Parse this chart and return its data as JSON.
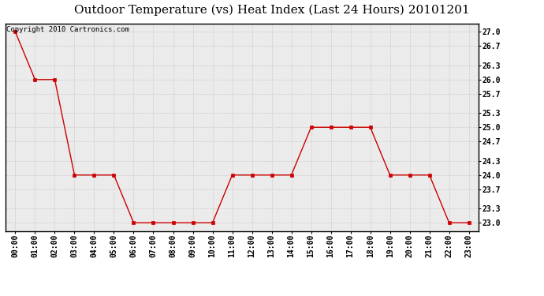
{
  "title": "Outdoor Temperature (vs) Heat Index (Last 24 Hours) 20101201",
  "copyright_text": "Copyright 2010 Cartronics.com",
  "hours": [
    "00:00",
    "01:00",
    "02:00",
    "03:00",
    "04:00",
    "05:00",
    "06:00",
    "07:00",
    "08:00",
    "09:00",
    "10:00",
    "11:00",
    "12:00",
    "13:00",
    "14:00",
    "15:00",
    "16:00",
    "17:00",
    "18:00",
    "19:00",
    "20:00",
    "21:00",
    "22:00",
    "23:00"
  ],
  "values": [
    27.0,
    26.0,
    26.0,
    24.0,
    24.0,
    24.0,
    23.0,
    23.0,
    23.0,
    23.0,
    23.0,
    24.0,
    24.0,
    24.0,
    24.0,
    25.0,
    25.0,
    25.0,
    25.0,
    24.0,
    24.0,
    24.0,
    23.0,
    23.0
  ],
  "ylim_min": 22.83,
  "ylim_max": 27.17,
  "yticks": [
    23.0,
    23.3,
    23.7,
    24.0,
    24.3,
    24.7,
    25.0,
    25.3,
    25.7,
    26.0,
    26.3,
    26.7,
    27.0
  ],
  "line_color": "#cc0000",
  "marker_color": "#cc0000",
  "bg_color": "#ffffff",
  "plot_bg_color": "#ebebeb",
  "grid_color": "#cccccc",
  "title_fontsize": 11,
  "tick_fontsize": 7,
  "copyright_fontsize": 6.5
}
